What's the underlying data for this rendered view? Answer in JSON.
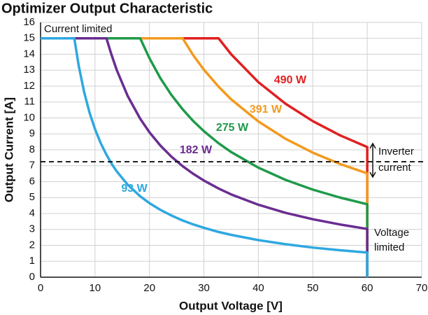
{
  "chart_data": {
    "type": "line",
    "title": "Optimizer Output Characteristic",
    "x_label": "Output Voltage [V]",
    "y_label": "Output Current [A]",
    "xlim": [
      0,
      70
    ],
    "ylim": [
      0,
      16
    ],
    "xticks": [
      0,
      10,
      20,
      30,
      40,
      50,
      60,
      70
    ],
    "yticks": [
      0,
      1,
      2,
      3,
      4,
      5,
      6,
      7,
      8,
      9,
      10,
      11,
      12,
      13,
      14,
      15,
      16
    ],
    "grid": true,
    "x": [
      0,
      6.2,
      7,
      8,
      9,
      10,
      11,
      12.1,
      13,
      14,
      16,
      18.3,
      20,
      22,
      24,
      26.1,
      28,
      30,
      32.7,
      35,
      40,
      45,
      50,
      55,
      60,
      60
    ],
    "series": [
      {
        "name": "93 W",
        "color": "#2ea8e0",
        "values": [
          15,
          15,
          13.29,
          11.63,
          10.33,
          9.3,
          8.45,
          7.69,
          7.15,
          6.64,
          5.81,
          5.08,
          4.65,
          4.23,
          3.88,
          3.56,
          3.32,
          3.1,
          2.84,
          2.66,
          2.33,
          2.07,
          1.86,
          1.69,
          1.55,
          0
        ]
      },
      {
        "name": "182 W",
        "color": "#6a2d91",
        "values": [
          15,
          15,
          15,
          15,
          15,
          15,
          15,
          15,
          14,
          13,
          11.38,
          9.95,
          9.1,
          8.27,
          7.58,
          6.97,
          6.5,
          6.07,
          5.57,
          5.2,
          4.55,
          4.04,
          3.64,
          3.31,
          3.03,
          0
        ]
      },
      {
        "name": "275 W",
        "color": "#1f9a4a",
        "values": [
          15,
          15,
          15,
          15,
          15,
          15,
          15,
          15,
          15,
          15,
          15,
          15,
          13.75,
          12.5,
          11.46,
          10.54,
          9.82,
          9.17,
          8.41,
          7.86,
          6.88,
          6.11,
          5.5,
          5,
          4.58,
          0
        ]
      },
      {
        "name": "391 W",
        "color": "#f39a1f",
        "values": [
          15,
          15,
          15,
          15,
          15,
          15,
          15,
          15,
          15,
          15,
          15,
          15,
          15,
          15,
          15,
          15,
          13.96,
          13.03,
          11.96,
          11.17,
          9.78,
          8.69,
          7.82,
          7.11,
          6.52,
          0
        ]
      },
      {
        "name": "490 W",
        "color": "#e02020",
        "values": [
          15,
          15,
          15,
          15,
          15,
          15,
          15,
          15,
          15,
          15,
          15,
          15,
          15,
          15,
          15,
          15,
          15,
          15,
          15,
          14,
          12.25,
          10.89,
          9.8,
          8.91,
          8.17,
          0
        ]
      }
    ],
    "reference_line": {
      "value": 7.25,
      "label": [
        "Inverter",
        "current"
      ]
    },
    "annotations": [
      "Current limited",
      [
        "Voltage",
        "limited"
      ]
    ]
  }
}
